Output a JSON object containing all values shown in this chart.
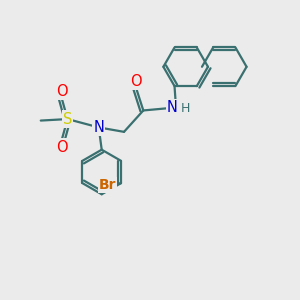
{
  "bg_color": "#ebebeb",
  "bond_color": "#3a7070",
  "bond_width": 1.6,
  "atom_colors": {
    "O": "#ff0000",
    "N": "#0000cc",
    "S": "#cccc00",
    "Br": "#cc6600",
    "H": "#3a7070"
  },
  "font_size": 9.5,
  "fig_size": [
    3.0,
    3.0
  ],
  "dpi": 100
}
